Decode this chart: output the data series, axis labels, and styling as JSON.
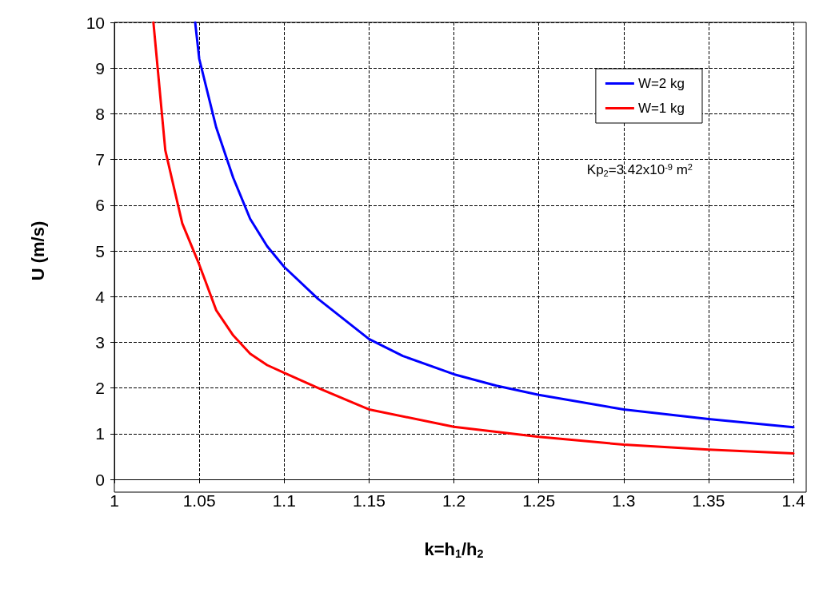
{
  "chart_data": {
    "type": "line",
    "xlabel": "k=h$_{1}$/h$_{2}$",
    "ylabel": "U (m/s)",
    "annotations": [
      "Kp$_{2}$=3.42x10$^{-9}$ m$^{2}$"
    ],
    "xlim": [
      1,
      1.4
    ],
    "xticks": [
      1,
      1.05,
      1.1,
      1.15,
      1.2,
      1.25,
      1.3,
      1.35,
      1.4
    ],
    "ylim": [
      0,
      10
    ],
    "yticks": [
      0,
      1,
      2,
      3,
      4,
      5,
      6,
      7,
      8,
      9,
      10
    ],
    "grid": true,
    "legend": "top right",
    "marker": "none",
    "line_style": "solid",
    "series": [
      {
        "name": "W=2 kg",
        "color": "#0000ff",
        "x": [
          1.0476,
          1.05,
          1.06,
          1.07,
          1.08,
          1.09,
          1.1,
          1.12,
          1.15,
          1.17,
          1.2,
          1.225,
          1.25,
          1.3,
          1.35,
          1.4
        ],
        "values": [
          10,
          9.2,
          7.7,
          6.6,
          5.7,
          5.1,
          4.65,
          3.95,
          3.07,
          2.7,
          2.3,
          2.05,
          1.85,
          1.53,
          1.32,
          1.14
        ]
      },
      {
        "name": "W=1 kg",
        "color": "#ff0000",
        "x": [
          1.023,
          1.03,
          1.04,
          1.05,
          1.06,
          1.07,
          1.08,
          1.09,
          1.1,
          1.12,
          1.15,
          1.2,
          1.25,
          1.3,
          1.35,
          1.4
        ],
        "values": [
          10,
          7.2,
          5.6,
          4.7,
          3.7,
          3.15,
          2.75,
          2.5,
          2.33,
          2.0,
          1.53,
          1.15,
          0.93,
          0.76,
          0.65,
          0.57
        ]
      }
    ]
  }
}
